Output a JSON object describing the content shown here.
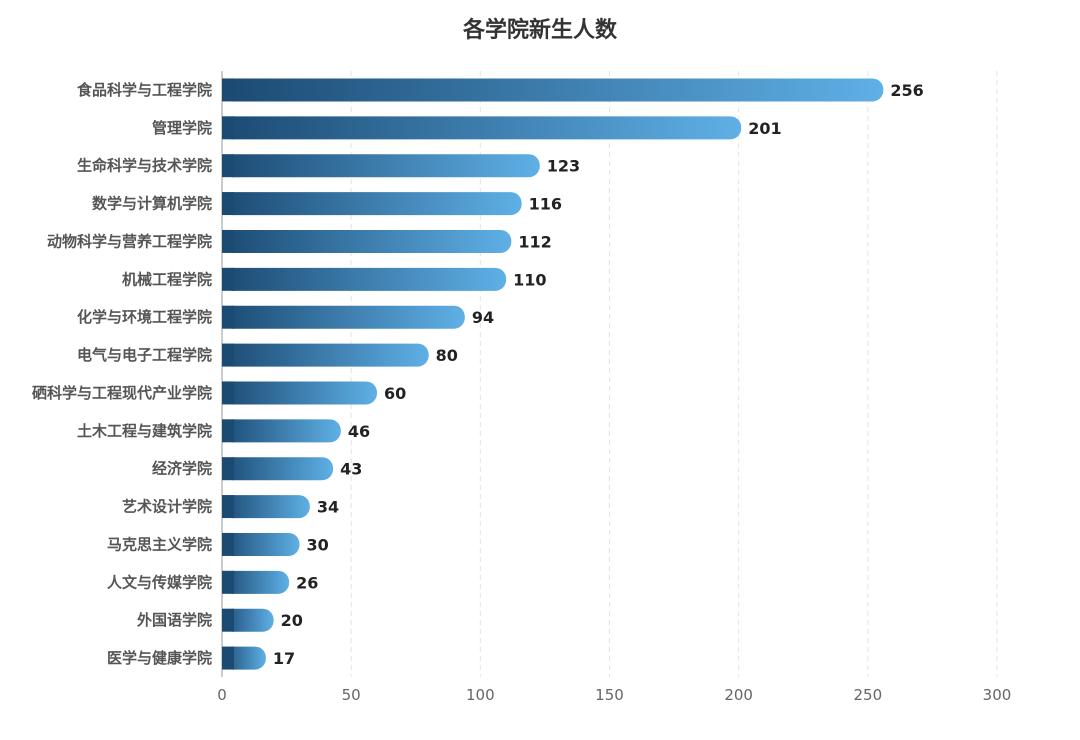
{
  "chart_data": {
    "type": "bar",
    "orientation": "horizontal",
    "title": "各学院新生人数",
    "xlabel": "",
    "ylabel": "",
    "xlim": [
      0,
      300
    ],
    "xticks": [
      "0",
      "50",
      "100",
      "150",
      "200",
      "250",
      "300"
    ],
    "grid": true,
    "categories": [
      "食品科学与工程学院",
      "管理学院",
      "生命科学与技术学院",
      "数学与计算机学院",
      "动物科学与营养工程学院",
      "机械工程学院",
      "化学与环境工程学院",
      "电气与电子工程学院",
      "硒科学与工程现代产业学院",
      "土木工程与建筑学院",
      "经济学院",
      "艺术设计学院",
      "马克思主义学院",
      "人文与传媒学院",
      "外国语学院",
      "医学与健康学院"
    ],
    "values": [
      256,
      201,
      123,
      116,
      112,
      110,
      94,
      80,
      60,
      46,
      43,
      34,
      30,
      26,
      20,
      17
    ],
    "colors": {
      "bar_start": "#1b4a73",
      "bar_end": "#5fb0e6",
      "grid": "#e3e3e3"
    }
  }
}
